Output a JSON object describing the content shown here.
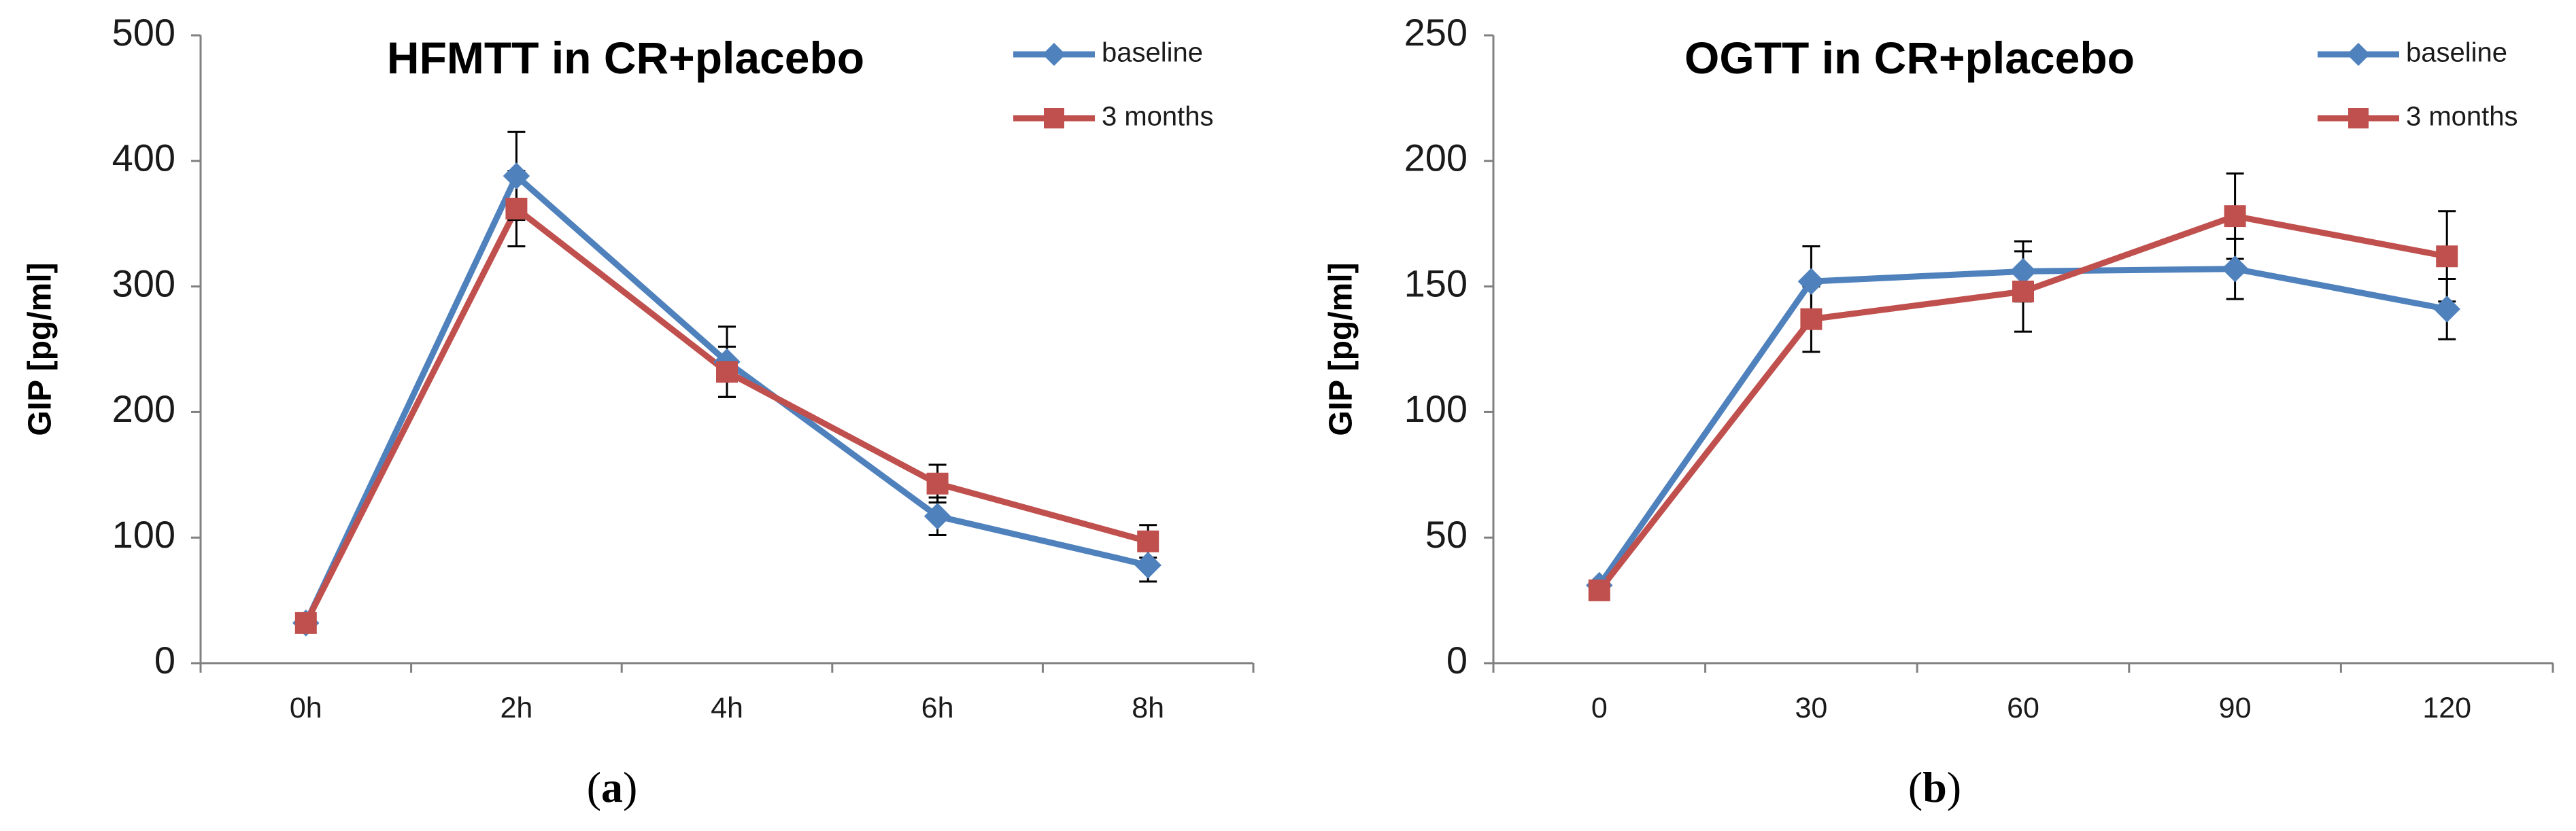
{
  "chart_data": [
    {
      "type": "line",
      "panel_label": "a",
      "title": "HFMTT in CR+placebo",
      "ylabel": "GIP [pg/ml]",
      "xlabel": "",
      "categories": [
        "0h",
        "2h",
        "4h",
        "6h",
        "8h"
      ],
      "ylim": [
        0,
        500
      ],
      "yticks": [
        0,
        100,
        200,
        300,
        400,
        500
      ],
      "grid": false,
      "legend_position": "top-right",
      "series": [
        {
          "name": "baseline",
          "color": "#4f81bd",
          "marker": "diamond",
          "values": [
            32,
            388,
            240,
            117,
            78
          ],
          "errors": [
            0,
            35,
            28,
            15,
            13
          ]
        },
        {
          "name": "3 months",
          "color": "#c0504d",
          "marker": "square",
          "values": [
            32,
            362,
            232,
            143,
            97
          ],
          "errors": [
            0,
            30,
            20,
            15,
            13
          ]
        }
      ]
    },
    {
      "type": "line",
      "panel_label": "b",
      "title": "OGTT in CR+placebo",
      "ylabel": "GIP [pg/ml]",
      "xlabel": "",
      "categories": [
        "0",
        "30",
        "60",
        "90",
        "120"
      ],
      "ylim": [
        0,
        250
      ],
      "yticks": [
        0,
        50,
        100,
        150,
        200,
        250
      ],
      "grid": false,
      "legend_position": "top-right",
      "series": [
        {
          "name": "baseline",
          "color": "#4f81bd",
          "marker": "diamond",
          "values": [
            31,
            152,
            156,
            157,
            141
          ],
          "errors": [
            0,
            14,
            12,
            12,
            12
          ]
        },
        {
          "name": "3 months",
          "color": "#c0504d",
          "marker": "square",
          "values": [
            29,
            137,
            148,
            178,
            162
          ],
          "errors": [
            0,
            13,
            16,
            17,
            18
          ]
        }
      ]
    }
  ]
}
